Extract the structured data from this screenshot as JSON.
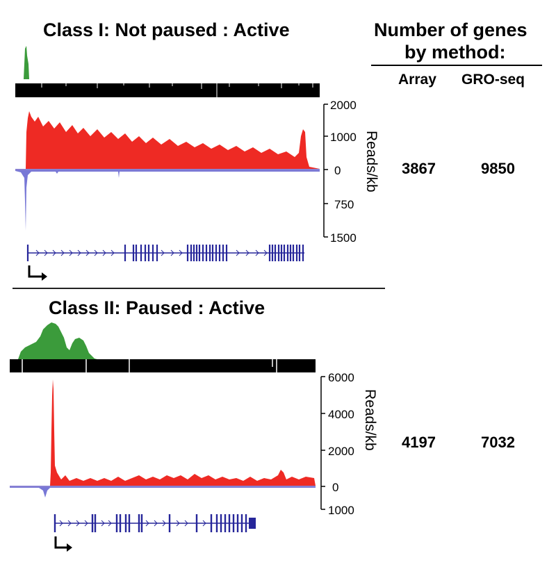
{
  "figure": {
    "method_header": {
      "line1": "Number of genes",
      "line2": "by method:"
    },
    "columns": [
      "Array",
      "GRO-seq"
    ],
    "axis_label": "Reads/kb",
    "colors": {
      "gro_sense": "#ee2a24",
      "gro_antisense": "#7777d6",
      "pol2_chip": "#3b9b3b",
      "conservation": "#000000",
      "gene_model": "#26269a"
    },
    "panels": [
      {
        "title": "Class I: Not paused : Active",
        "counts": {
          "array": "3867",
          "gro_seq": "9850"
        },
        "axis_ticks": {
          "top": "2000",
          "upper_mid": "1000",
          "zero": "0",
          "lower_mid": "750",
          "bottom": "1500"
        }
      },
      {
        "title": "Class II: Paused : Active",
        "counts": {
          "array": "4197",
          "gro_seq": "7032"
        },
        "axis_ticks": {
          "top": "6000",
          "upper_mid": "4000",
          "mid": "2000",
          "zero": "0",
          "bottom": "1000"
        }
      }
    ]
  }
}
